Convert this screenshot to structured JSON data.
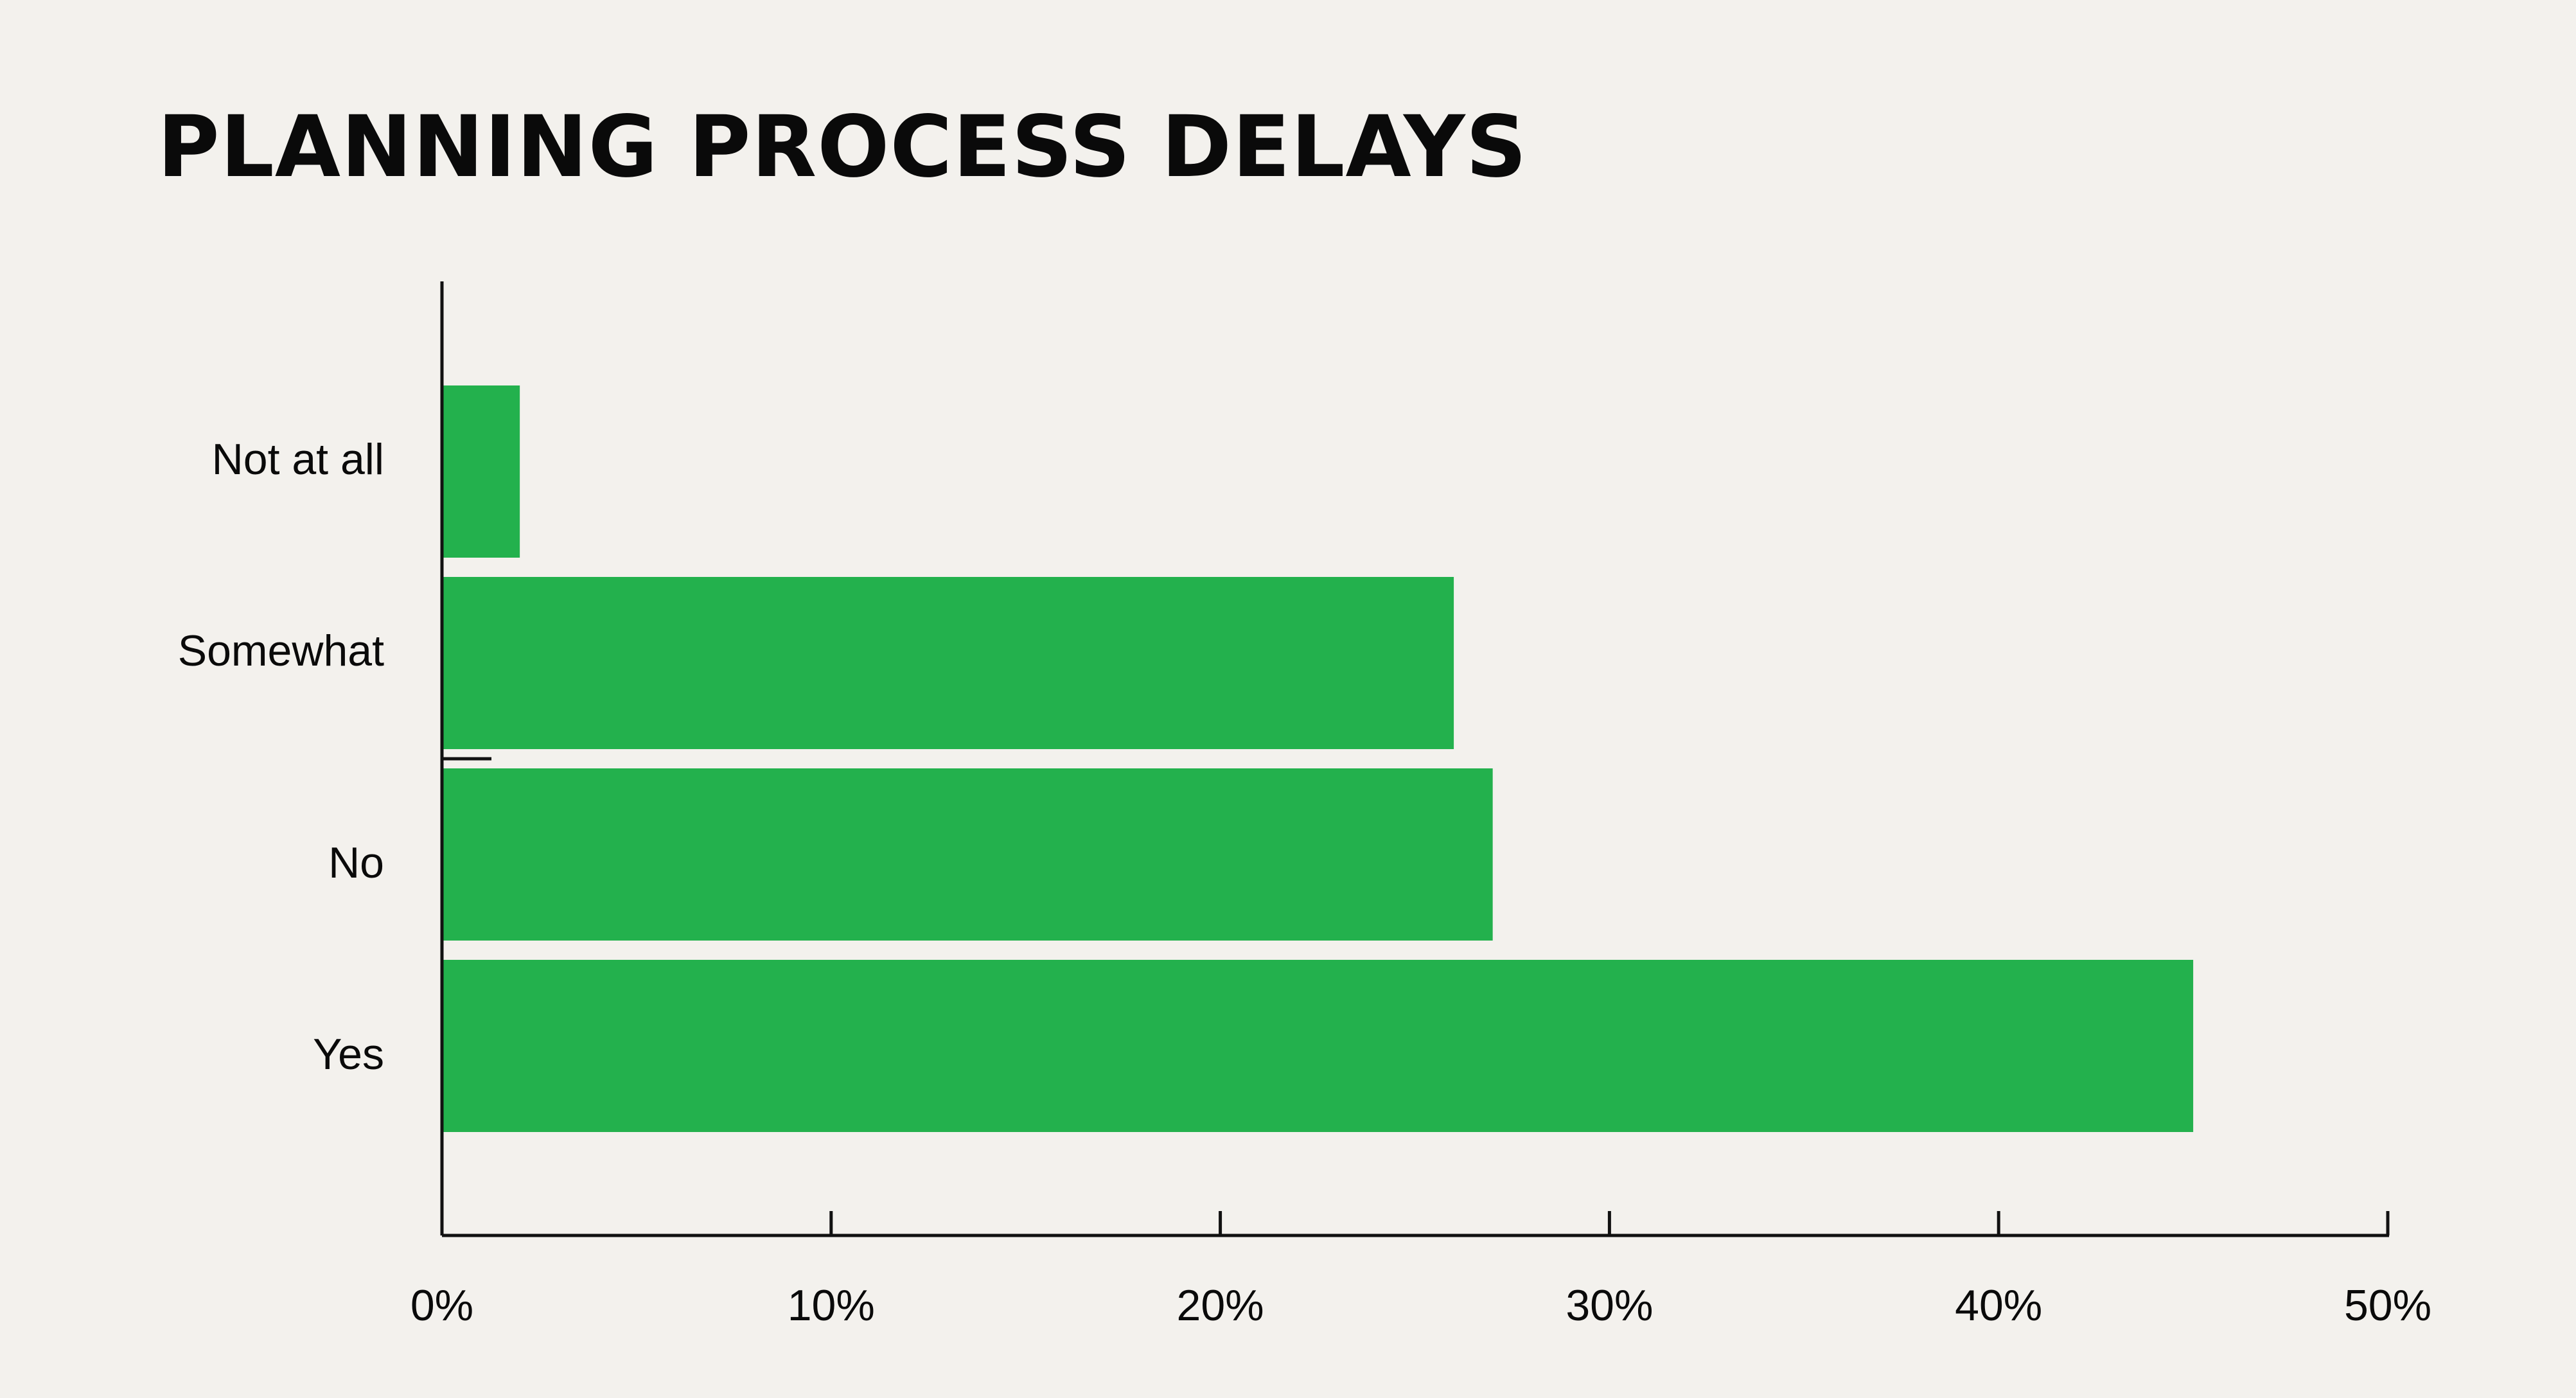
{
  "chart_data": {
    "type": "bar",
    "orientation": "horizontal",
    "title": "PLANNING PROCESS DELAYS",
    "xlabel": "",
    "ylabel": "",
    "categories": [
      "Not at all",
      "Somewhat",
      "No",
      "Yes"
    ],
    "values": [
      2,
      26,
      27,
      45
    ],
    "unit": "%",
    "xlim": [
      0,
      50
    ],
    "ticks": [
      {
        "value": 0,
        "label": "0%"
      },
      {
        "value": 10,
        "label": "10%"
      },
      {
        "value": 20,
        "label": "20%"
      },
      {
        "value": 30,
        "label": "30%"
      },
      {
        "value": 40,
        "label": "40%"
      },
      {
        "value": 50,
        "label": "50%"
      }
    ],
    "grid": false,
    "legend": "none",
    "colors": {
      "bar": "#23b14d",
      "axis": "#111111",
      "background": "#f3f1ed",
      "text": "#0a0a0a"
    }
  }
}
